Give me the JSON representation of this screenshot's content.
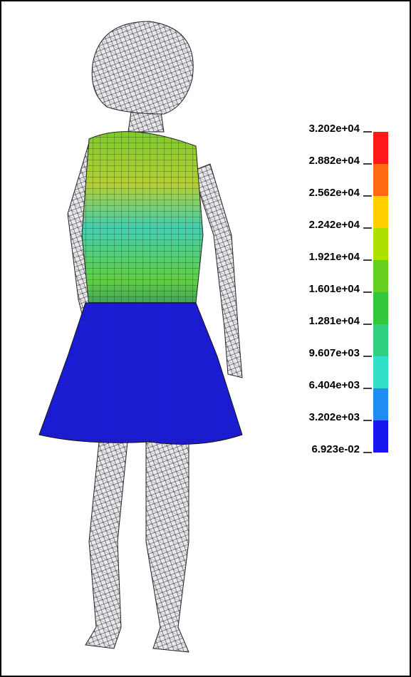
{
  "legend": {
    "labels": [
      "3.202e+04",
      "2.882e+04",
      "2.562e+04",
      "2.242e+04",
      "1.921e+04",
      "1.601e+04",
      "1.281e+04",
      "9.607e+03",
      "6.404e+03",
      "3.202e+03",
      "6.923e-02"
    ],
    "colors": [
      "#ff1a1a",
      "#ff6a10",
      "#ffd000",
      "#aee000",
      "#66d020",
      "#33c83a",
      "#30d080",
      "#30e0c8",
      "#1e8cf0",
      "#1818ee"
    ]
  }
}
